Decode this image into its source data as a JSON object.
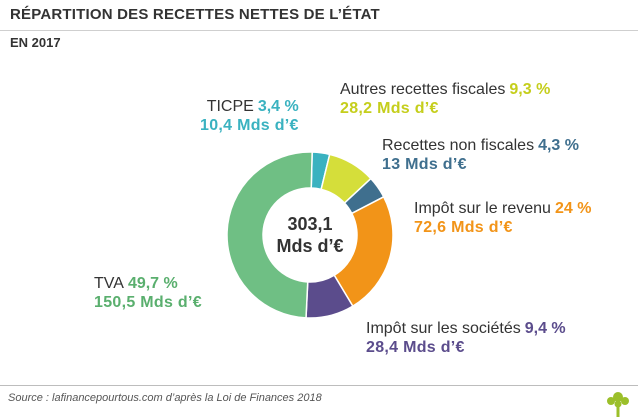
{
  "header": {
    "title": "RÉPARTITION DES RECETTES NETTES DE L’ÉTAT",
    "subtitle": "EN 2017"
  },
  "chart_data": {
    "type": "pie",
    "variant": "donut",
    "title": "RÉPARTITION DES RECETTES NETTES DE L’ÉTAT",
    "subtitle": "EN 2017",
    "center_total": {
      "line1": "303,1",
      "line2": "Mds d’€"
    },
    "slices": [
      {
        "key": "ticpe",
        "name": "TICPE",
        "percent": 3.4,
        "pct_label": "3,4 %",
        "amount_label": "10,4 Mds d’€",
        "color": "#3ab2c0",
        "label_color": "#3ab2c0"
      },
      {
        "key": "autres",
        "name": "Autres recettes fiscales",
        "percent": 9.3,
        "pct_label": "9,3 %",
        "amount_label": "28,2 Mds d’€",
        "color": "#d5de3a",
        "label_color": "#c5ce1c"
      },
      {
        "key": "non_fiscales",
        "name": "Recettes non fiscales",
        "percent": 4.3,
        "pct_label": "4,3 %",
        "amount_label": "13 Mds d’€",
        "color": "#3f6f8e",
        "label_color": "#3f6f8e"
      },
      {
        "key": "revenu",
        "name": "Impôt sur le revenu",
        "percent": 24,
        "pct_label": "24 %",
        "amount_label": "72,6 Mds d’€",
        "color": "#f29418",
        "label_color": "#f29418"
      },
      {
        "key": "societes",
        "name": "Impôt sur les sociétés",
        "percent": 9.4,
        "pct_label": "9,4 %",
        "amount_label": "28,4 Mds d’€",
        "color": "#5b4c8c",
        "label_color": "#5b4c8c"
      },
      {
        "key": "tva",
        "name": "TVA",
        "percent": 49.7,
        "pct_label": "49,7 %",
        "amount_label": "150,5 Mds d’€",
        "color": "#6fbf84",
        "label_color": "#5aaf6e"
      }
    ]
  },
  "footer": {
    "source": "Source : lafinancepourtous.com d’après la Loi de Finances 2018"
  },
  "colors": {
    "logo": "#9bbf2a"
  },
  "icons": {
    "logo": "tree-logo-icon"
  }
}
